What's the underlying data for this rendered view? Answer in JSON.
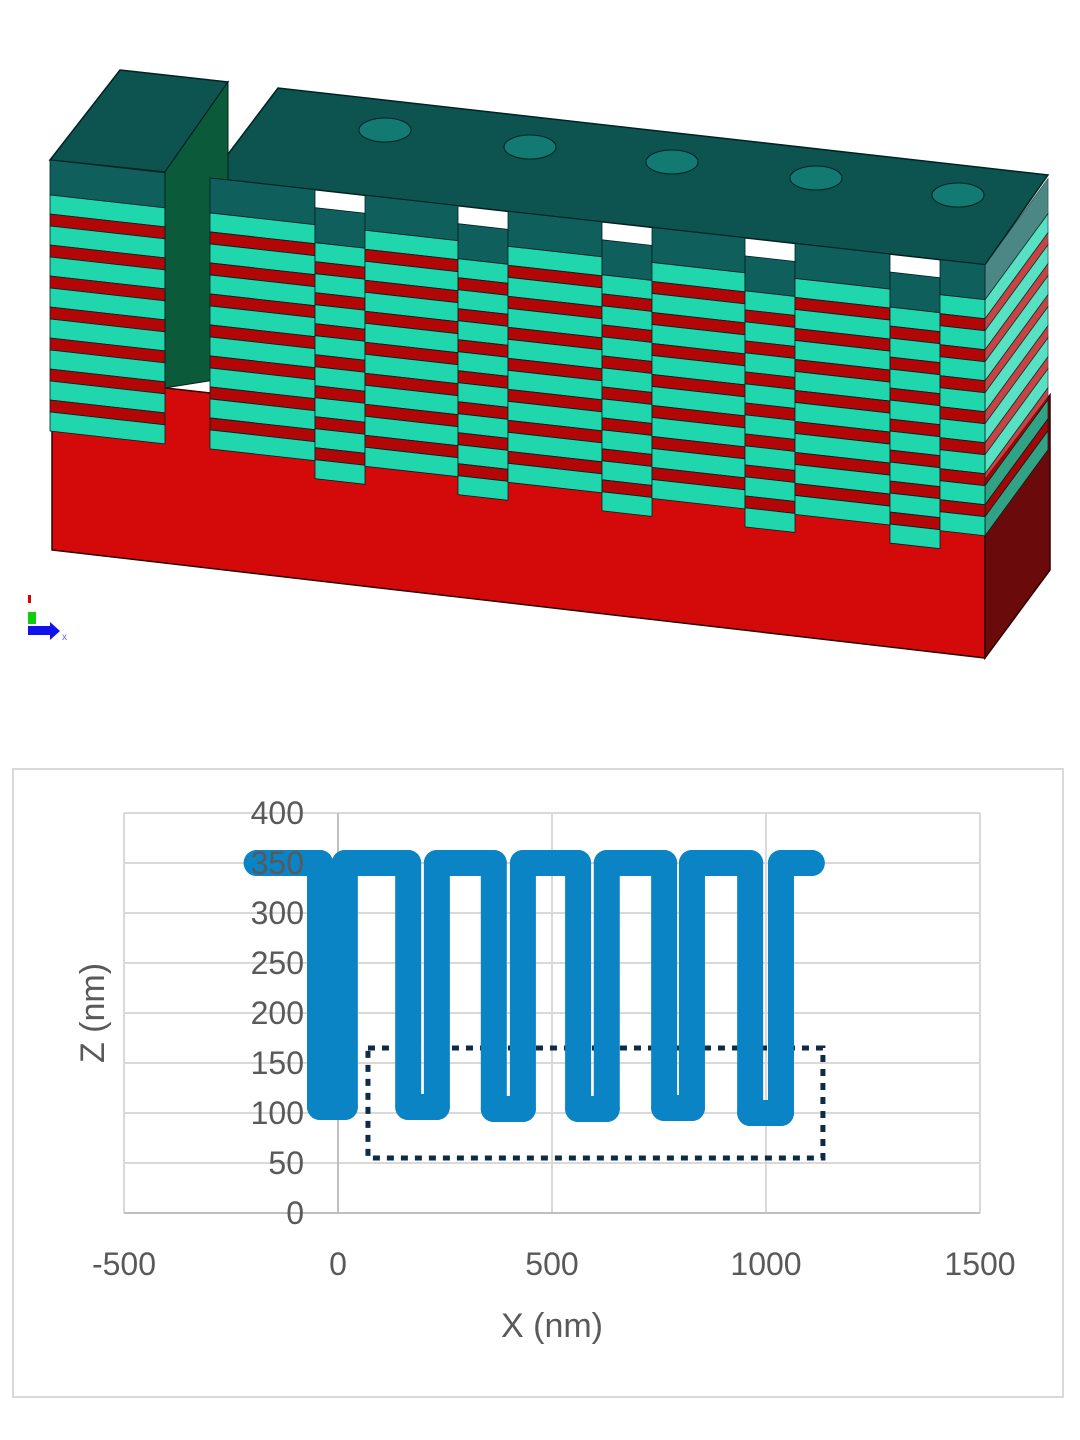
{
  "render": {
    "description_colors": {
      "cap": "#0f5f5c",
      "cap_top": "#0d5350",
      "light_layer": "#1fd6ad",
      "red_layer": "#b30606",
      "green_layer": "#0a7a1a",
      "substrate": "#d40a0a",
      "substrate_side": "#6a0a0a"
    },
    "axis_triad_label": "x"
  },
  "chart_data": {
    "type": "scatter",
    "xlabel": "X (nm)",
    "ylabel": "Z (nm)",
    "xlim": [
      -500,
      1500
    ],
    "ylim": [
      0,
      400
    ],
    "xticks": [
      -500,
      0,
      500,
      1000,
      1500
    ],
    "yticks": [
      0,
      50,
      100,
      150,
      200,
      250,
      300,
      350,
      400
    ],
    "grid": true,
    "series": [
      {
        "color": "#0b84c6",
        "x": [
          -190,
          -42,
          -42,
          16,
          16,
          164,
          164,
          231,
          231,
          364,
          364,
          432,
          432,
          561,
          561,
          628,
          628,
          762,
          762,
          827,
          827,
          963,
          963,
          1035,
          1035,
          1107
        ],
        "y": [
          350,
          350,
          106,
          106,
          350,
          350,
          106,
          106,
          350,
          350,
          104,
          104,
          350,
          350,
          104,
          104,
          350,
          350,
          105,
          105,
          350,
          350,
          100,
          100,
          350,
          350
        ]
      }
    ],
    "annotations": [
      {
        "type": "dotted-rectangle",
        "x": [
          70,
          1133
        ],
        "y": [
          55,
          165
        ],
        "color": "#0d2b45"
      }
    ]
  }
}
